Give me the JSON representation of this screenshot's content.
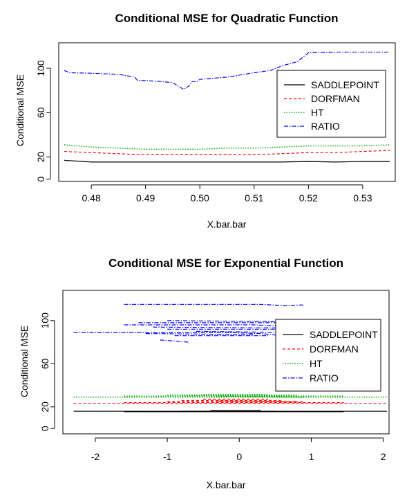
{
  "chart_data": [
    {
      "type": "line",
      "title": "Conditional MSE for Quadratic Function",
      "xlabel": "X.bar.bar",
      "ylabel": "Conditional MSE",
      "xlim": [
        0.474,
        0.536
      ],
      "ylim": [
        -2,
        123
      ],
      "xticks": [
        "0.48",
        "0.49",
        "0.50",
        "0.51",
        "0.52",
        "0.53"
      ],
      "xtick_values": [
        0.48,
        0.49,
        0.5,
        0.51,
        0.52,
        0.53
      ],
      "yticks": [
        "0",
        "20",
        "60",
        "100"
      ],
      "ytick_values": [
        0,
        20,
        60,
        100
      ],
      "grid": false,
      "legend_position": "right",
      "legend": [
        "SADDLEPOINT",
        "DORFMAN",
        "HT",
        "RATIO"
      ],
      "series": [
        {
          "name": "SADDLEPOINT",
          "color": "#000000",
          "dash": "solid",
          "x": [
            0.475,
            0.48,
            0.485,
            0.49,
            0.495,
            0.5,
            0.505,
            0.51,
            0.515,
            0.52,
            0.525,
            0.53,
            0.535
          ],
          "y": [
            17,
            15.5,
            15.5,
            15.5,
            15.5,
            15.5,
            15.5,
            15.5,
            15.5,
            16,
            15.5,
            16,
            16
          ]
        },
        {
          "name": "DORFMAN",
          "color": "#ff0000",
          "dash": "dashed",
          "x": [
            0.475,
            0.48,
            0.485,
            0.49,
            0.495,
            0.5,
            0.505,
            0.51,
            0.515,
            0.52,
            0.525,
            0.53,
            0.535
          ],
          "y": [
            25,
            24,
            23,
            22,
            22,
            22,
            22,
            22,
            23,
            24,
            24,
            25,
            26
          ]
        },
        {
          "name": "HT",
          "color": "#00aa00",
          "dash": "dotted",
          "x": [
            0.475,
            0.48,
            0.485,
            0.49,
            0.495,
            0.5,
            0.505,
            0.51,
            0.515,
            0.52,
            0.525,
            0.53,
            0.535
          ],
          "y": [
            31,
            29,
            28,
            27,
            27,
            27,
            28,
            28,
            29,
            30,
            30,
            30,
            31
          ]
        },
        {
          "name": "RATIO",
          "color": "#0000ff",
          "dash": "dashdot",
          "x": [
            0.475,
            0.476,
            0.48,
            0.485,
            0.488,
            0.4885,
            0.49,
            0.493,
            0.495,
            0.496,
            0.497,
            0.498,
            0.4985,
            0.4995,
            0.5,
            0.505,
            0.51,
            0.513,
            0.515,
            0.518,
            0.5185,
            0.519,
            0.5195,
            0.52,
            0.525,
            0.53,
            0.535
          ],
          "y": [
            98,
            96,
            95.5,
            94.5,
            92,
            89,
            89,
            88,
            87,
            84,
            81,
            84,
            88,
            88,
            90,
            92,
            96,
            98,
            102,
            106,
            108,
            110,
            112,
            114,
            114.5,
            114.5,
            114.5
          ]
        }
      ]
    },
    {
      "type": "line",
      "title": "Conditional MSE for Exponential Function",
      "xlabel": "X.bar.bar",
      "ylabel": "Conditional MSE",
      "xlim": [
        -2.45,
        2.08
      ],
      "ylim": [
        -5,
        128
      ],
      "xticks": [
        "-2",
        "-1",
        "0",
        "1",
        "2"
      ],
      "xtick_values": [
        -2,
        -1,
        0,
        1,
        2
      ],
      "yticks": [
        "0",
        "20",
        "60",
        "100"
      ],
      "ytick_values": [
        0,
        20,
        60,
        100
      ],
      "grid": false,
      "legend_position": "right",
      "legend": [
        "SADDLEPOINT",
        "DORFMAN",
        "HT",
        "RATIO"
      ],
      "series": [
        {
          "name": "SADDLEPOINT",
          "color": "#000000",
          "dash": "solid",
          "segments": [
            [
              [
                -2.3,
                16
              ],
              [
                2.05,
                16
              ]
            ],
            [
              [
                -1.6,
                15.5
              ],
              [
                1.45,
                15.5
              ]
            ],
            [
              [
                -0.8,
                16
              ],
              [
                0.5,
                16
              ]
            ],
            [
              [
                -0.4,
                16.5
              ],
              [
                0.3,
                16.5
              ]
            ]
          ]
        },
        {
          "name": "DORFMAN",
          "color": "#ff0000",
          "dash": "dashed",
          "segments": [
            [
              [
                -2.3,
                23
              ],
              [
                2.05,
                23
              ]
            ],
            [
              [
                -1.6,
                24
              ],
              [
                1.45,
                24
              ]
            ],
            [
              [
                -1.0,
                25
              ],
              [
                0.8,
                25
              ]
            ],
            [
              [
                -0.8,
                26
              ],
              [
                0.6,
                26
              ]
            ],
            [
              [
                -0.5,
                27
              ],
              [
                0.4,
                27
              ]
            ],
            [
              [
                -0.3,
                25.5
              ],
              [
                0.9,
                24.5
              ]
            ]
          ]
        },
        {
          "name": "HT",
          "color": "#00aa00",
          "dash": "dotted",
          "segments": [
            [
              [
                -2.3,
                29
              ],
              [
                2.05,
                29
              ]
            ],
            [
              [
                -1.6,
                30
              ],
              [
                1.45,
                30
              ]
            ],
            [
              [
                -1.0,
                31
              ],
              [
                0.8,
                31
              ]
            ],
            [
              [
                -0.8,
                30.5
              ],
              [
                0.6,
                30.5
              ]
            ],
            [
              [
                -0.5,
                31.5
              ],
              [
                0.4,
                31.5
              ]
            ],
            [
              [
                -0.3,
                30
              ],
              [
                0.9,
                29
              ]
            ]
          ]
        },
        {
          "name": "RATIO",
          "color": "#0000ff",
          "dash": "dashdot",
          "segments": [
            [
              [
                -1.6,
                115
              ],
              [
                0.3,
                115
              ],
              [
                0.6,
                114
              ],
              [
                0.9,
                114.5
              ]
            ],
            [
              [
                -2.3,
                89
              ],
              [
                -0.2,
                89
              ],
              [
                0.3,
                88
              ],
              [
                0.6,
                86
              ]
            ],
            [
              [
                -1.6,
                96
              ],
              [
                0.2,
                96
              ],
              [
                0.9,
                94
              ]
            ],
            [
              [
                -1.4,
                98
              ],
              [
                0.5,
                98
              ],
              [
                0.9,
                96
              ]
            ],
            [
              [
                -1.0,
                92
              ],
              [
                0.5,
                92
              ]
            ],
            [
              [
                -1.2,
                94
              ],
              [
                0.8,
                93
              ]
            ],
            [
              [
                -0.9,
                86
              ],
              [
                0.4,
                86
              ]
            ],
            [
              [
                -1.1,
                82
              ],
              [
                -0.7,
                80
              ],
              [
                -0.7,
                79
              ]
            ],
            [
              [
                -1.0,
                100
              ],
              [
                0.6,
                99
              ]
            ],
            [
              [
                -0.6,
                90
              ],
              [
                0.7,
                89
              ]
            ],
            [
              [
                -1.3,
                88
              ],
              [
                0.2,
                87
              ]
            ]
          ]
        }
      ]
    }
  ]
}
